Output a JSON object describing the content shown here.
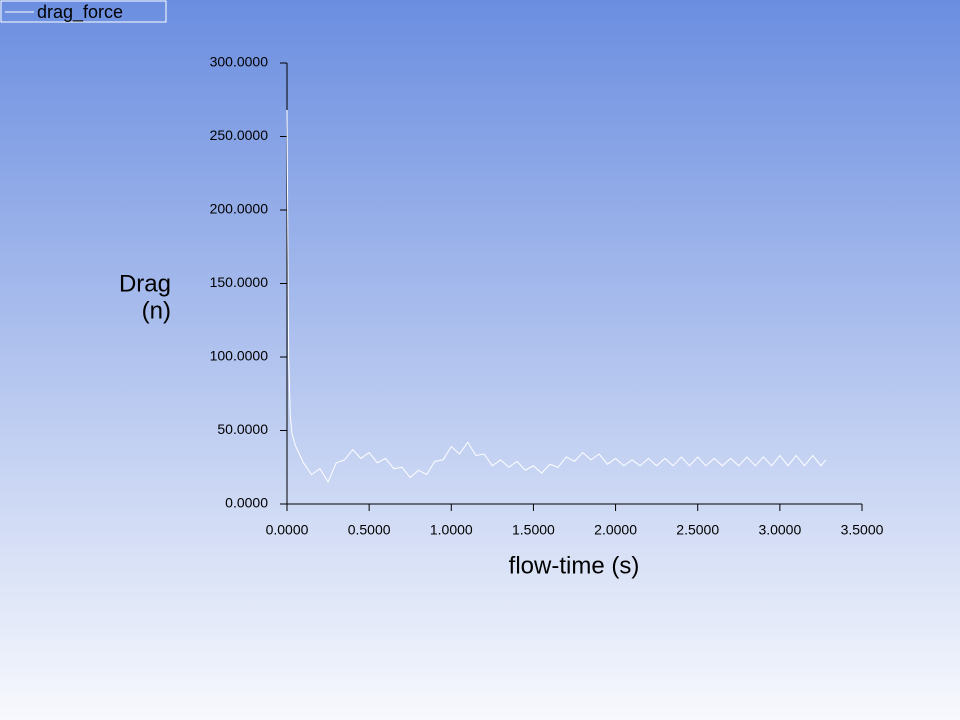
{
  "chart_data": {
    "type": "line",
    "xlabel": "flow-time (s)",
    "ylabel": [
      "Drag",
      "(n)"
    ],
    "x": [
      0,
      0.005,
      0.01,
      0.02,
      0.03,
      0.05,
      0.1,
      0.15,
      0.2,
      0.25,
      0.3,
      0.35,
      0.4,
      0.45,
      0.5,
      0.55,
      0.6,
      0.65,
      0.7,
      0.75,
      0.8,
      0.85,
      0.9,
      0.95,
      1.0,
      1.05,
      1.1,
      1.15,
      1.2,
      1.25,
      1.3,
      1.35,
      1.4,
      1.45,
      1.5,
      1.55,
      1.6,
      1.65,
      1.7,
      1.75,
      1.8,
      1.85,
      1.9,
      1.95,
      2.0,
      2.05,
      2.1,
      2.15,
      2.2,
      2.25,
      2.3,
      2.35,
      2.4,
      2.45,
      2.5,
      2.55,
      2.6,
      2.65,
      2.7,
      2.75,
      2.8,
      2.85,
      2.9,
      2.95,
      3.0,
      3.05,
      3.1,
      3.15,
      3.2,
      3.25,
      3.28
    ],
    "series": [
      {
        "name": "drag_force",
        "color": "#ffffff",
        "values": [
          268,
          180,
          100,
          60,
          48,
          40,
          28,
          20,
          24,
          15,
          28,
          30,
          37,
          31,
          35,
          28,
          31,
          24,
          25,
          18,
          23,
          20,
          29,
          30,
          39,
          34,
          42,
          33,
          34,
          26,
          30,
          25,
          29,
          23,
          26,
          21,
          27,
          25,
          32,
          29,
          35,
          30,
          34,
          27,
          31,
          26,
          30,
          26,
          31,
          26,
          31,
          26,
          32,
          26,
          32,
          26,
          31,
          26,
          31,
          26,
          32,
          26,
          32,
          26,
          33,
          26,
          33,
          26,
          33,
          26,
          30
        ]
      }
    ],
    "xlim": [
      0,
      3.5
    ],
    "xticks": [
      {
        "value": 0,
        "label": "0.0000"
      },
      {
        "value": 0.5,
        "label": "0.5000"
      },
      {
        "value": 1,
        "label": "1.0000"
      },
      {
        "value": 1.5,
        "label": "1.5000"
      },
      {
        "value": 2,
        "label": "2.0000"
      },
      {
        "value": 2.5,
        "label": "2.5000"
      },
      {
        "value": 3,
        "label": "3.0000"
      },
      {
        "value": 3.5,
        "label": "3.5000"
      }
    ],
    "ylim": [
      0,
      300
    ],
    "yticks": [
      {
        "value": 0,
        "label": "0.0000"
      },
      {
        "value": 50,
        "label": "50.0000"
      },
      {
        "value": 100,
        "label": "100.0000"
      },
      {
        "value": 150,
        "label": "150.0000"
      },
      {
        "value": 200,
        "label": "200.0000"
      },
      {
        "value": 250,
        "label": "250.0000"
      },
      {
        "value": 300,
        "label": "300.0000"
      }
    ],
    "grid": false,
    "legend": "top-left"
  }
}
